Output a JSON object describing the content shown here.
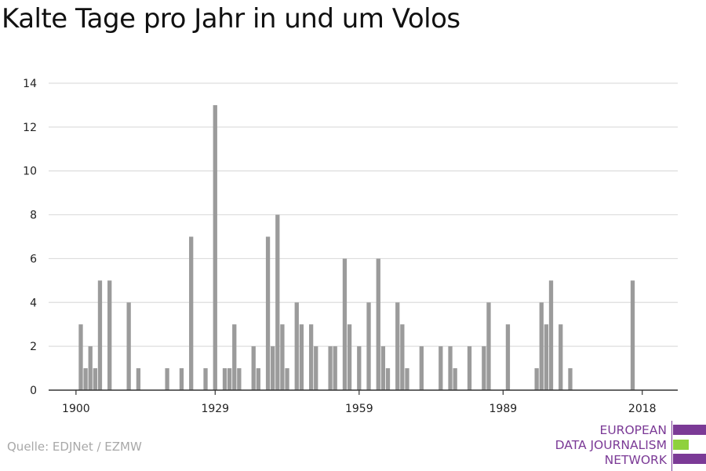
{
  "title": "Kalte Tage pro Jahr in und um Volos",
  "source": "Quelle: EDJNet / EZMW",
  "logo": {
    "lines": [
      "EUROPEAN",
      "DATA JOURNALISM",
      "NETWORK"
    ],
    "color_purple": "#7b3a96",
    "color_green": "#8fd13d"
  },
  "colors": {
    "bar": "#9b9b9b",
    "grid": "#dddddd",
    "axis": "#333333"
  },
  "chart_data": {
    "type": "bar",
    "title": "Kalte Tage pro Jahr in und um Volos",
    "xlabel": "",
    "ylabel": "",
    "xlim": [
      1894,
      2025
    ],
    "ylim": [
      0,
      14
    ],
    "yticks": [
      0,
      2,
      4,
      6,
      8,
      10,
      12,
      14
    ],
    "xticks": [
      1900,
      1929,
      1959,
      1989,
      2018
    ],
    "grid": true,
    "x": [
      1901,
      1902,
      1903,
      1904,
      1905,
      1907,
      1911,
      1913,
      1919,
      1922,
      1924,
      1927,
      1929,
      1931,
      1932,
      1933,
      1934,
      1937,
      1938,
      1940,
      1941,
      1942,
      1943,
      1944,
      1946,
      1947,
      1949,
      1950,
      1953,
      1954,
      1956,
      1957,
      1959,
      1961,
      1963,
      1964,
      1965,
      1967,
      1968,
      1969,
      1972,
      1976,
      1978,
      1979,
      1982,
      1985,
      1986,
      1990,
      1996,
      1997,
      1998,
      1999,
      2001,
      2003
    ],
    "values": [
      3,
      1,
      2,
      1,
      5,
      5,
      4,
      1,
      1,
      1,
      7,
      1,
      13,
      1,
      1,
      3,
      1,
      2,
      1,
      7,
      2,
      8,
      3,
      1,
      4,
      3,
      3,
      2,
      2,
      2,
      6,
      3,
      2,
      4,
      6,
      2,
      1,
      4,
      3,
      1,
      2,
      2,
      2,
      1,
      2,
      2,
      4,
      3,
      1,
      4,
      3,
      5,
      3,
      1
    ],
    "x_extra": [
      2016
    ],
    "values_extra": [
      5
    ]
  }
}
